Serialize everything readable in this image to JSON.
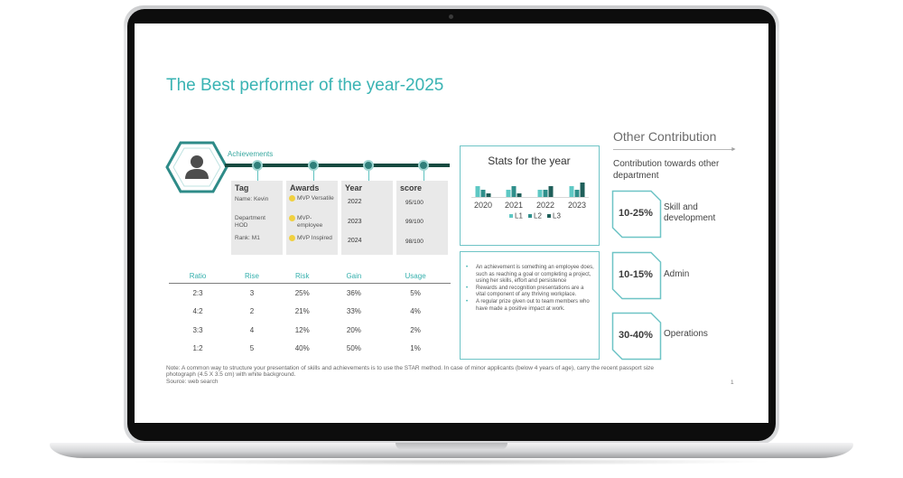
{
  "slide": {
    "title": "The Best performer of the year-2025",
    "achievements_label": "Achievements",
    "cards": {
      "tag": {
        "header": "Tag",
        "name": "Name: Kevin",
        "department": "Department HOD",
        "rank": "Rank: M1"
      },
      "awards": {
        "header": "Awards",
        "items": [
          "MVP Versatile",
          "MVP-employee",
          "MVP Inspired"
        ]
      },
      "year": {
        "header": "Year",
        "items": [
          "2022",
          "2023",
          "2024"
        ]
      },
      "score": {
        "header": "score",
        "items": [
          "95/100",
          "99/100",
          "98/100"
        ]
      }
    },
    "table": {
      "headers": [
        "Ratio",
        "Rise",
        "Risk",
        "Gain",
        "Usage"
      ],
      "rows": [
        [
          "2:3",
          "3",
          "25%",
          "36%",
          "5%"
        ],
        [
          "4:2",
          "2",
          "21%",
          "33%",
          "4%"
        ],
        [
          "3:3",
          "4",
          "12%",
          "20%",
          "2%"
        ],
        [
          "1:2",
          "5",
          "40%",
          "50%",
          "1%"
        ]
      ]
    },
    "stats": {
      "title": "Stats for the year"
    },
    "bullets": [
      "An achievement is something an employee does, such as reaching a goal or completing a project, using her skills, effort and persistence",
      "Rewards and recognition presentations are a vital component of any thriving workplace.",
      "A regular prize given out to team members who have made a positive impact at work."
    ],
    "other_contribution": {
      "title": "Other Contribution",
      "subtitle": "Contribution towards other department",
      "items": [
        {
          "pct": "10-25%",
          "label": "Skill and development"
        },
        {
          "pct": "10-15%",
          "label": "Admin"
        },
        {
          "pct": "30-40%",
          "label": "Operations"
        }
      ]
    },
    "note": "Note: A common way to structure your presentation of skills and achievements is to use the STAR method. In case of minor applicants (below 4 years of age), carry the recent passport size photograph (4.5 X 3.5 cm) with white background.",
    "source": "Source: web search",
    "page_number": "1"
  },
  "colors": {
    "teal": "#36b0ad",
    "dark_green": "#174a40",
    "border_teal": "#6ec4c6",
    "bar_l1": "#5ec8c4",
    "bar_l2": "#2f8f8b",
    "bar_l3": "#1f5f5a"
  },
  "chart_data": {
    "type": "bar",
    "title": "Stats for the year",
    "categories": [
      "2020",
      "2021",
      "2022",
      "2023"
    ],
    "series": [
      {
        "name": "L1",
        "values": [
          3,
          2,
          2,
          3
        ]
      },
      {
        "name": "L2",
        "values": [
          2,
          3,
          2,
          2
        ]
      },
      {
        "name": "L3",
        "values": [
          1,
          1,
          3,
          4
        ]
      }
    ],
    "ylim": [
      0,
      4
    ],
    "legend": "bottom",
    "grid": false
  }
}
